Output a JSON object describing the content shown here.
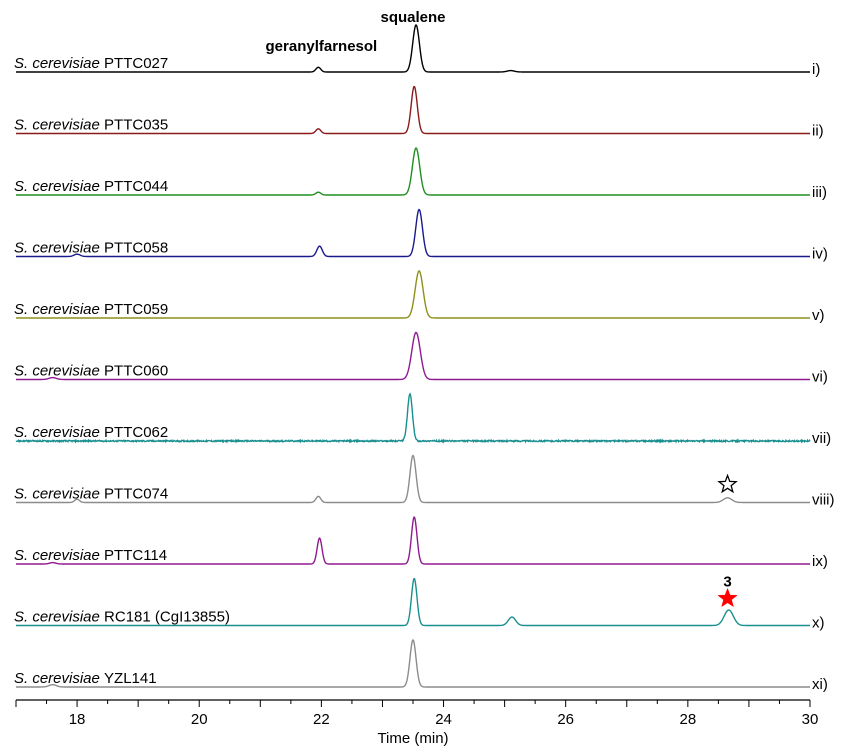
{
  "chart_data": {
    "type": "line",
    "xlabel": "Time (min)",
    "xlim": [
      17,
      30
    ],
    "xticks": [
      18,
      20,
      22,
      24,
      26,
      28,
      30
    ],
    "minor_tick_step": 0.5,
    "grid": false,
    "peak_labels": [
      {
        "text": "geranylfarnesol",
        "x": 22.0
      },
      {
        "text": "squalene",
        "x": 23.5
      }
    ],
    "series": [
      {
        "name_italic": "S. cerevisiae",
        "name_rest": " PTTC027",
        "roman": "i)",
        "color": "#000000",
        "peaks": [
          {
            "x": 21.95,
            "h": 0.1,
            "w": 0.04
          },
          {
            "x": 23.55,
            "h": 1.0,
            "w": 0.055
          },
          {
            "x": 25.1,
            "h": 0.03,
            "w": 0.06
          }
        ]
      },
      {
        "name_italic": "S. cerevisiae",
        "name_rest": " PTTC035",
        "roman": "ii)",
        "color": "#8B1A1A",
        "peaks": [
          {
            "x": 21.95,
            "h": 0.1,
            "w": 0.04
          },
          {
            "x": 23.52,
            "h": 1.0,
            "w": 0.05
          }
        ]
      },
      {
        "name_italic": "S. cerevisiae",
        "name_rest": " PTTC044",
        "roman": "iii)",
        "color": "#1F8F1F",
        "peaks": [
          {
            "x": 21.95,
            "h": 0.06,
            "w": 0.04
          },
          {
            "x": 23.55,
            "h": 1.0,
            "w": 0.06
          }
        ]
      },
      {
        "name_italic": "S. cerevisiae",
        "name_rest": " PTTC058",
        "roman": "iv)",
        "color": "#1A1A8F",
        "peaks": [
          {
            "x": 18.0,
            "h": 0.05,
            "w": 0.05
          },
          {
            "x": 21.97,
            "h": 0.22,
            "w": 0.045
          },
          {
            "x": 23.6,
            "h": 1.0,
            "w": 0.055
          }
        ]
      },
      {
        "name_italic": "S. cerevisiae",
        "name_rest": " PTTC059",
        "roman": "v)",
        "color": "#8F8F1A",
        "peaks": [
          {
            "x": 23.6,
            "h": 1.0,
            "w": 0.065
          }
        ]
      },
      {
        "name_italic": "S. cerevisiae",
        "name_rest": " PTTC060",
        "roman": "vi)",
        "color": "#8F1A8F",
        "peaks": [
          {
            "x": 17.6,
            "h": 0.04,
            "w": 0.06
          },
          {
            "x": 23.55,
            "h": 1.0,
            "w": 0.07
          }
        ]
      },
      {
        "name_italic": "S. cerevisiae",
        "name_rest": " PTTC062",
        "roman": "vii)",
        "color": "#1A8F8F",
        "peaks": [
          {
            "x": 23.45,
            "h": 1.0,
            "w": 0.04
          }
        ],
        "noise": 0.03
      },
      {
        "name_italic": "S. cerevisiae",
        "name_rest": " PTTC074",
        "roman": "viii)",
        "color": "#8C8C8C",
        "peaks": [
          {
            "x": 18.0,
            "h": 0.07,
            "w": 0.04
          },
          {
            "x": 21.95,
            "h": 0.13,
            "w": 0.04
          },
          {
            "x": 23.5,
            "h": 1.0,
            "w": 0.05
          },
          {
            "x": 28.65,
            "h": 0.1,
            "w": 0.07
          }
        ]
      },
      {
        "name_italic": "S. cerevisiae",
        "name_rest": " PTTC114",
        "roman": "ix)",
        "color": "#8F1A8F",
        "peaks": [
          {
            "x": 17.6,
            "h": 0.03,
            "w": 0.05
          },
          {
            "x": 21.97,
            "h": 0.55,
            "w": 0.04
          },
          {
            "x": 23.52,
            "h": 1.0,
            "w": 0.045
          }
        ]
      },
      {
        "name_italic": "S. cerevisiae",
        "name_rest": " RC181 (CgI13855)",
        "roman": "x)",
        "color": "#1A8F8F",
        "peaks": [
          {
            "x": 23.52,
            "h": 1.0,
            "w": 0.045
          },
          {
            "x": 25.12,
            "h": 0.18,
            "w": 0.06
          },
          {
            "x": 28.67,
            "h": 0.33,
            "w": 0.075
          }
        ]
      },
      {
        "name_italic": "S. cerevisiae",
        "name_rest": " YZL141",
        "roman": "xi)",
        "color": "#8C8C8C",
        "peaks": [
          {
            "x": 17.6,
            "h": 0.05,
            "w": 0.06
          },
          {
            "x": 23.5,
            "h": 1.0,
            "w": 0.05
          }
        ]
      }
    ],
    "annotations": [
      {
        "series_index": 7,
        "x": 28.65,
        "text": "",
        "symbol": "open-star",
        "color": "#000000"
      },
      {
        "series_index": 9,
        "x": 28.65,
        "text": "3",
        "symbol": "filled-star",
        "color": "#FF0000"
      }
    ]
  }
}
